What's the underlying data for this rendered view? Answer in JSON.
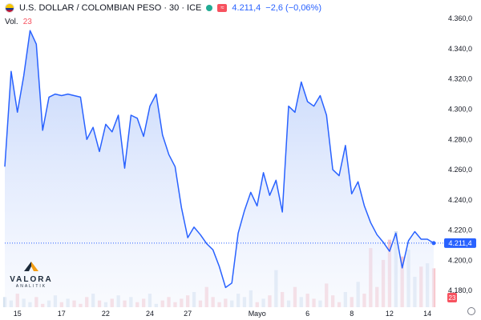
{
  "header": {
    "title": "U.S. DOLLAR / COLOMBIAN PESO · 30 · ICE",
    "price": "4.211,4",
    "change": "−2,6 (−0,06%)",
    "vol_label": "Vol.",
    "vol_value": "23"
  },
  "logo": {
    "name": "VALORA",
    "sub": "ANALITIK"
  },
  "colors": {
    "line": "#2962ff",
    "fill_top": "#bcd0fb",
    "fill_bottom": "#f3f6fe",
    "vol_up": "#d6e2ef",
    "vol_down": "#f7c9cf",
    "badge_vol": "#f7525f"
  },
  "chart_data": {
    "type": "area",
    "ylim": [
      4169,
      4368
    ],
    "yticks": [
      "4.180,0",
      "4.200,0",
      "4.220,0",
      "4.240,0",
      "4.260,0",
      "4.280,0",
      "4.300,0",
      "4.320,0",
      "4.340,0",
      "4.360,0"
    ],
    "ytick_values": [
      4180,
      4200,
      4220,
      4240,
      4260,
      4280,
      4300,
      4320,
      4340,
      4360
    ],
    "xticks": [
      {
        "label": "15",
        "i": 2
      },
      {
        "label": "17",
        "i": 9
      },
      {
        "label": "22",
        "i": 16
      },
      {
        "label": "24",
        "i": 23
      },
      {
        "label": "27",
        "i": 29
      },
      {
        "label": "Mayo",
        "i": 40
      },
      {
        "label": "6",
        "i": 48
      },
      {
        "label": "8",
        "i": 55
      },
      {
        "label": "12",
        "i": 61
      },
      {
        "label": "14",
        "i": 67
      }
    ],
    "last_price_label": "4.211,4",
    "last_price_value": 4211.4,
    "last_volume_label": "23",
    "values": [
      4262,
      4325,
      4298,
      4322,
      4352,
      4343,
      4286,
      4308,
      4310,
      4309,
      4310,
      4309,
      4308,
      4280,
      4288,
      4272,
      4290,
      4285,
      4296,
      4261,
      4296,
      4294,
      4282,
      4302,
      4310,
      4283,
      4270,
      4262,
      4235,
      4215,
      4222,
      4217,
      4211,
      4207,
      4196,
      4182,
      4185,
      4218,
      4233,
      4245,
      4236,
      4258,
      4243,
      4253,
      4232,
      4302,
      4298,
      4318,
      4305,
      4302,
      4309,
      4296,
      4260,
      4256,
      4276,
      4244,
      4252,
      4236,
      4225,
      4217,
      4212,
      4206,
      4218,
      4195,
      4213,
      4219,
      4214,
      4214,
      4211.4
    ],
    "volume": [
      6,
      4,
      8,
      5,
      3,
      6,
      2,
      4,
      7,
      3,
      5,
      4,
      2,
      6,
      8,
      4,
      3,
      5,
      7,
      4,
      6,
      3,
      5,
      8,
      2,
      4,
      6,
      3,
      5,
      7,
      9,
      4,
      12,
      6,
      3,
      5,
      4,
      8,
      6,
      10,
      3,
      5,
      7,
      22,
      9,
      4,
      12,
      6,
      8,
      5,
      4,
      14,
      7,
      3,
      9,
      6,
      15,
      8,
      35,
      12,
      28,
      40,
      45,
      30,
      34,
      18,
      24,
      26,
      23
    ]
  }
}
